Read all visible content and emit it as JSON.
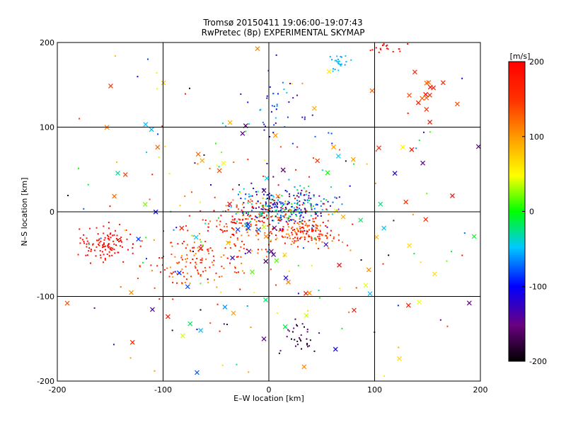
{
  "chart_data": {
    "type": "scatter",
    "title": "Tromsø 20150411 19:06:00–19:07:43",
    "subtitle": "RwPretec (8p) EXPERIMENTAL SKYMAP",
    "xlabel": "E–W location [km]",
    "ylabel": "N–S location [km]",
    "xlim": [
      -200,
      200
    ],
    "ylim": [
      -200,
      200
    ],
    "xticks": [
      -200,
      -100,
      0,
      100,
      200
    ],
    "yticks": [
      -200,
      -100,
      0,
      100,
      200
    ],
    "grid": true,
    "colorbar": {
      "label": "[m/s]",
      "min": -200,
      "max": 200,
      "ticks": [
        200,
        100,
        0,
        -100,
        -200
      ],
      "colormap": "rainbow (black → purple → blue → cyan → green → yellow → orange → red)"
    },
    "markers": [
      "x (meteor echo)",
      "dot (small points)"
    ],
    "clusters": [
      {
        "cx": 15,
        "cy": 5,
        "sx": 22,
        "sy": 10,
        "n": 260,
        "vmean": -90,
        "vspread": 90,
        "marker": "dot"
      },
      {
        "cx": -10,
        "cy": -15,
        "sx": 30,
        "sy": 14,
        "n": 200,
        "vmean": 160,
        "vspread": 60,
        "marker": "dot"
      },
      {
        "cx": 40,
        "cy": -25,
        "sx": 12,
        "sy": 8,
        "n": 110,
        "vmean": 160,
        "vspread": 60,
        "marker": "dot"
      },
      {
        "cx": -155,
        "cy": -38,
        "sx": 12,
        "sy": 10,
        "n": 110,
        "vmean": 190,
        "vspread": 15,
        "marker": "dot"
      },
      {
        "cx": -70,
        "cy": -55,
        "sx": 28,
        "sy": 18,
        "n": 150,
        "vmean": 150,
        "vspread": 60,
        "marker": "dot"
      },
      {
        "cx": 10,
        "cy": 120,
        "sx": 18,
        "sy": 18,
        "n": 40,
        "vmean": -100,
        "vspread": 60,
        "marker": "dot"
      },
      {
        "cx": 30,
        "cy": -150,
        "sx": 10,
        "sy": 10,
        "n": 30,
        "vmean": -170,
        "vspread": 30,
        "marker": "dot"
      },
      {
        "cx": 65,
        "cy": 175,
        "sx": 6,
        "sy": 6,
        "n": 25,
        "vmean": -50,
        "vspread": 10,
        "marker": "dot"
      },
      {
        "cx": 110,
        "cy": 195,
        "sx": 8,
        "sy": 4,
        "n": 20,
        "vmean": 180,
        "vspread": 20,
        "marker": "dot"
      },
      {
        "cx": 160,
        "cy": 140,
        "sx": 10,
        "sy": 10,
        "n": 14,
        "vmean": 150,
        "vspread": 40,
        "marker": "x"
      },
      {
        "cx": 0,
        "cy": 0,
        "sx": 110,
        "sy": 100,
        "n": 220,
        "vmean": 0,
        "vspread": 200,
        "marker": "dot"
      },
      {
        "cx": 0,
        "cy": -5,
        "sx": 100,
        "sy": 90,
        "n": 120,
        "vmean": 20,
        "vspread": 190,
        "marker": "x"
      }
    ]
  }
}
